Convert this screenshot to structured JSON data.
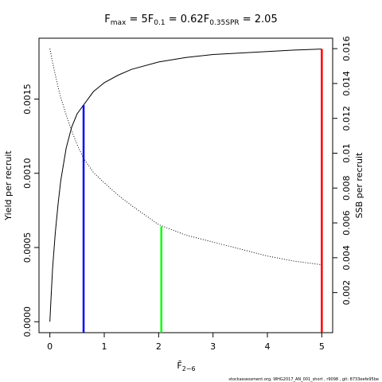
{
  "chart_data": {
    "type": "line",
    "title_parts": [
      {
        "main": "F",
        "sub": "max",
        "rest": " = 5"
      },
      {
        "main": "F",
        "sub": "0.1",
        "rest": " = 0.62"
      },
      {
        "main": "F",
        "sub": "0.35SPR",
        "rest": " = 2.05"
      }
    ],
    "x_label": {
      "main": "F̄",
      "sub": "2−6"
    },
    "y_label": "Yield per recruit",
    "y2_label": "SSB per recruit",
    "footer": "stockassessment.org, WHG2017_AN_001_short , r9098 , git: 8733eefe95be",
    "x": [
      0,
      0.02,
      0.05,
      0.1,
      0.15,
      0.2,
      0.3,
      0.4,
      0.5,
      0.62,
      0.8,
      1,
      1.25,
      1.5,
      2,
      2.5,
      3,
      3.5,
      4,
      4.5,
      5
    ],
    "series": [
      {
        "axis": "y",
        "color": "#000000",
        "dash": "solid",
        "values": [
          0,
          0.00015,
          0.00036,
          0.0006,
          0.00079,
          0.00095,
          0.00117,
          0.00131,
          0.0014,
          0.00146,
          0.00155,
          0.00161,
          0.00166,
          0.0017,
          0.00175,
          0.00178,
          0.0018,
          0.00181,
          0.00182,
          0.00183,
          0.001837
        ]
      },
      {
        "axis": "y2",
        "color": "#000000",
        "dash": "dotted",
        "values": [
          0.016,
          0.0157,
          0.0152,
          0.0145,
          0.0138,
          0.0132,
          0.0122,
          0.0113,
          0.0105,
          0.0097,
          0.0089,
          0.0083,
          0.0076,
          0.007,
          0.0059,
          0.0053,
          0.0049,
          0.0045,
          0.0041,
          0.0038,
          0.0036
        ]
      }
    ],
    "reference_lines": [
      {
        "x": 0.62,
        "value": 0.00146,
        "axis": "y",
        "color": "#0000ff"
      },
      {
        "x": 2.05,
        "value": 0.0058,
        "axis": "y2",
        "color": "#00ff00"
      },
      {
        "x": 5,
        "value": 0.001837,
        "axis": "y",
        "color": "#ff0000"
      }
    ],
    "xlim": [
      -0.2,
      5.2
    ],
    "xticks": [
      0,
      1,
      2,
      3,
      4,
      5
    ],
    "ylim": [
      -7.36e-05,
      0.00191
    ],
    "yticks": [
      {
        "value": 0,
        "label": "0.0000"
      },
      0.0005,
      {
        "value": 0.001,
        "label": "0.0010"
      },
      0.0015
    ],
    "y2lim": [
      -0.0003,
      0.0166
    ],
    "y2ticks": [
      0.002,
      0.004,
      0.006,
      0.008,
      0.01,
      0.012,
      0.014,
      0.016
    ]
  }
}
